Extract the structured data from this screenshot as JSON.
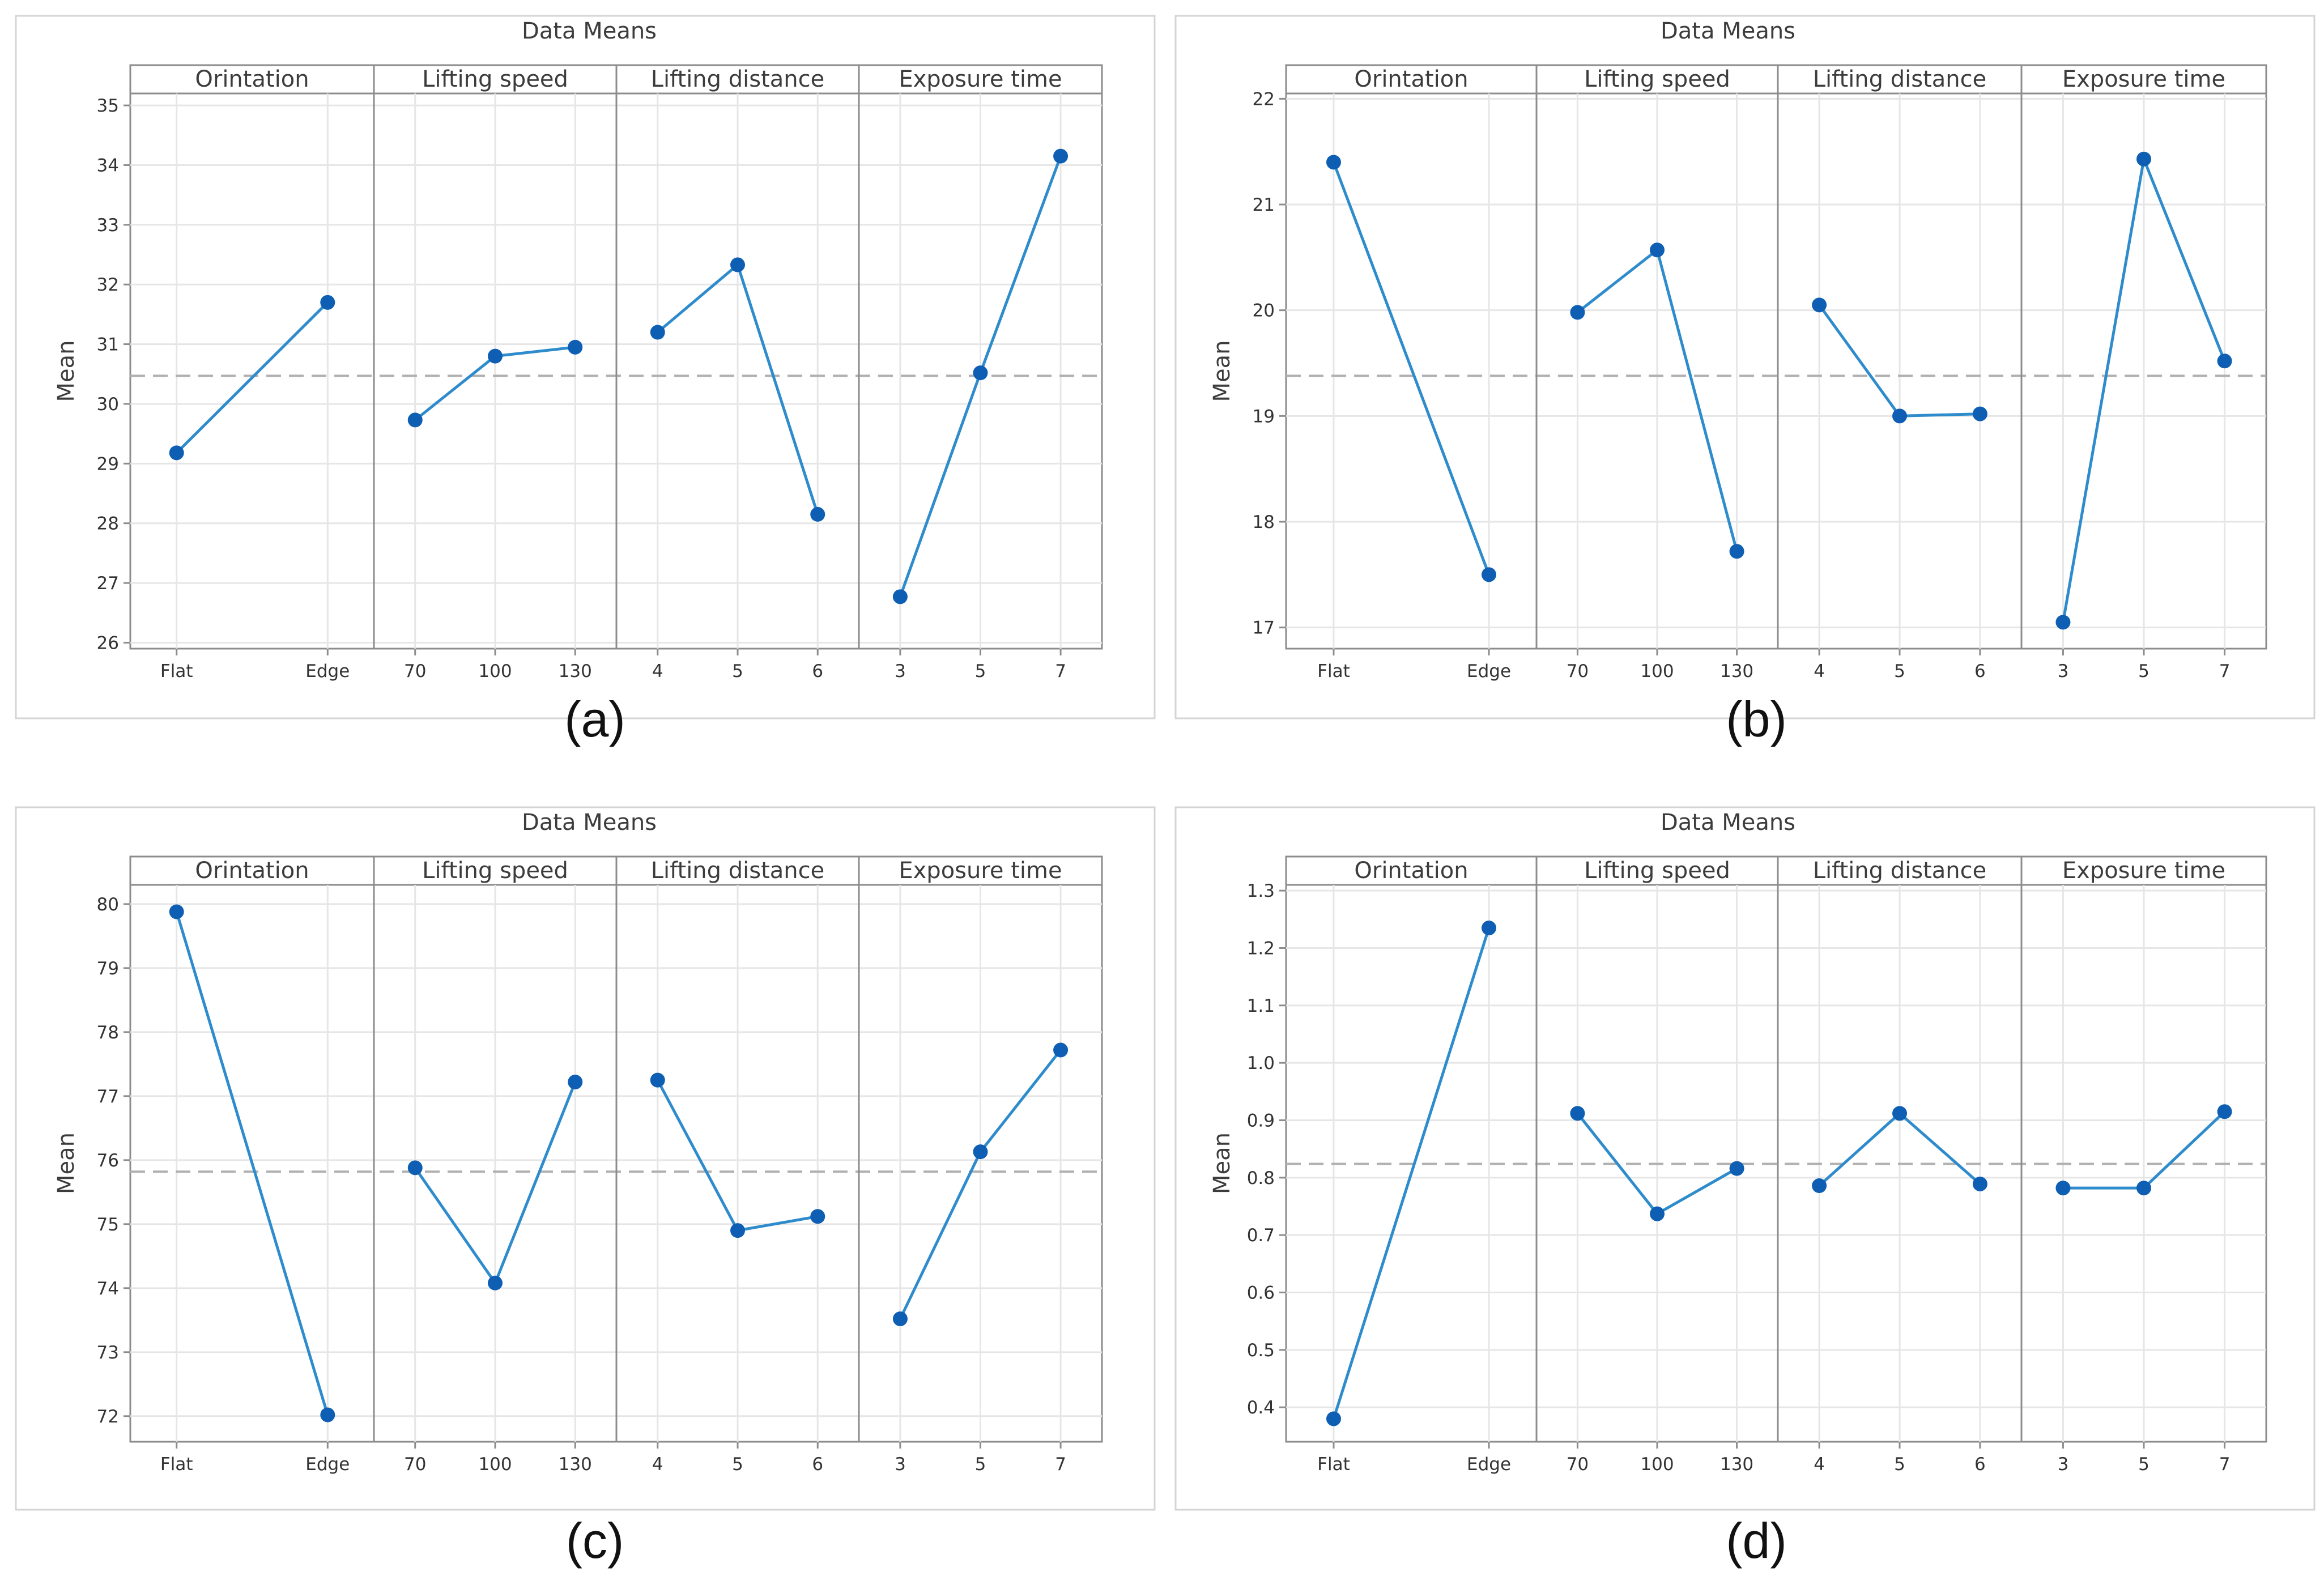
{
  "chart_data": [
    {
      "type": "line",
      "title": "Data Means",
      "caption": "(a)",
      "ylabel": "Mean",
      "ylim": [
        25.9,
        35.2
      ],
      "yticks": [
        "26",
        "27",
        "28",
        "29",
        "30",
        "31",
        "32",
        "33",
        "34",
        "35"
      ],
      "reference_mean": 30.47,
      "factors": [
        {
          "name": "Orintation",
          "levels": [
            "Flat",
            "Edge"
          ],
          "values": [
            29.18,
            31.7
          ]
        },
        {
          "name": "Lifting speed",
          "levels": [
            "70",
            "100",
            "130"
          ],
          "values": [
            29.73,
            30.8,
            30.95
          ]
        },
        {
          "name": "Lifting distance",
          "levels": [
            "4",
            "5",
            "6"
          ],
          "values": [
            31.2,
            32.33,
            28.15
          ]
        },
        {
          "name": "Exposure time",
          "levels": [
            "3",
            "5",
            "7"
          ],
          "values": [
            26.77,
            30.52,
            34.15
          ]
        }
      ]
    },
    {
      "type": "line",
      "title": "Data Means",
      "caption": "(b)",
      "ylabel": "Mean",
      "ylim": [
        16.8,
        22.05
      ],
      "yticks": [
        "17",
        "18",
        "19",
        "20",
        "21",
        "22"
      ],
      "reference_mean": 19.38,
      "factors": [
        {
          "name": "Orintation",
          "levels": [
            "Flat",
            "Edge"
          ],
          "values": [
            21.4,
            17.5
          ]
        },
        {
          "name": "Lifting speed",
          "levels": [
            "70",
            "100",
            "130"
          ],
          "values": [
            19.98,
            20.57,
            17.72
          ]
        },
        {
          "name": "Lifting distance",
          "levels": [
            "4",
            "5",
            "6"
          ],
          "values": [
            20.05,
            19.0,
            19.02
          ]
        },
        {
          "name": "Exposure time",
          "levels": [
            "3",
            "5",
            "7"
          ],
          "values": [
            17.05,
            21.43,
            19.52
          ]
        }
      ]
    },
    {
      "type": "line",
      "title": "Data Means",
      "caption": "(c)",
      "ylabel": "Mean",
      "ylim": [
        71.6,
        80.3
      ],
      "yticks": [
        "72",
        "73",
        "74",
        "75",
        "76",
        "77",
        "78",
        "79",
        "80"
      ],
      "reference_mean": 75.82,
      "factors": [
        {
          "name": "Orintation",
          "levels": [
            "Flat",
            "Edge"
          ],
          "values": [
            79.88,
            72.02
          ]
        },
        {
          "name": "Lifting speed",
          "levels": [
            "70",
            "100",
            "130"
          ],
          "values": [
            75.88,
            74.08,
            77.22
          ]
        },
        {
          "name": "Lifting distance",
          "levels": [
            "4",
            "5",
            "6"
          ],
          "values": [
            77.25,
            74.9,
            75.12
          ]
        },
        {
          "name": "Exposure time",
          "levels": [
            "3",
            "5",
            "7"
          ],
          "values": [
            73.52,
            76.13,
            77.72
          ]
        }
      ]
    },
    {
      "type": "line",
      "title": "Data Means",
      "caption": "(d)",
      "ylabel": "Mean",
      "ylim": [
        0.34,
        1.31
      ],
      "yticks": [
        "0.4",
        "0.5",
        "0.6",
        "0.7",
        "0.8",
        "0.9",
        "1.0",
        "1.1",
        "1.2",
        "1.3"
      ],
      "reference_mean": 0.824,
      "factors": [
        {
          "name": "Orintation",
          "levels": [
            "Flat",
            "Edge"
          ],
          "values": [
            0.38,
            1.235
          ]
        },
        {
          "name": "Lifting speed",
          "levels": [
            "70",
            "100",
            "130"
          ],
          "values": [
            0.912,
            0.737,
            0.816
          ]
        },
        {
          "name": "Lifting distance",
          "levels": [
            "4",
            "5",
            "6"
          ],
          "values": [
            0.786,
            0.912,
            0.789
          ]
        },
        {
          "name": "Exposure time",
          "levels": [
            "3",
            "5",
            "7"
          ],
          "values": [
            0.782,
            0.782,
            0.915
          ]
        }
      ]
    }
  ]
}
